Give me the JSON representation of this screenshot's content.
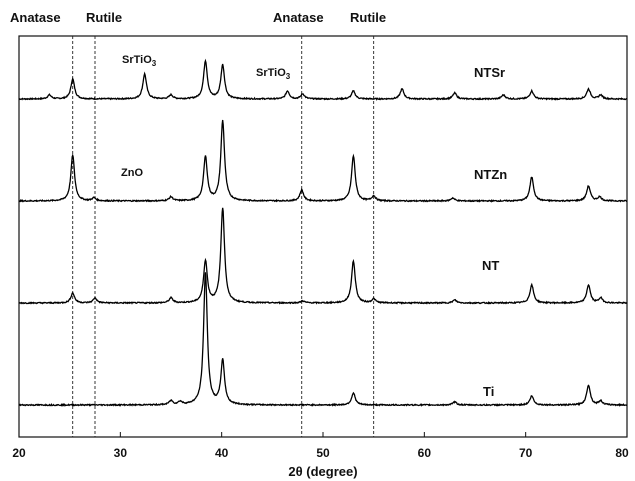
{
  "chart_data": {
    "type": "line",
    "title": "",
    "xlabel": "2θ (degree)",
    "ylabel": "",
    "xlim": [
      20,
      80
    ],
    "xticks": [
      20,
      30,
      40,
      50,
      60,
      70,
      80
    ],
    "grid": false,
    "reference_lines": [
      {
        "x": 25.3,
        "label": "Anatase"
      },
      {
        "x": 27.5,
        "label": "Rutile"
      },
      {
        "x": 47.9,
        "label": "Anatase"
      },
      {
        "x": 55.0,
        "label": "Rutile"
      }
    ],
    "annotations": [
      {
        "text": "SrTiO",
        "sub": "3",
        "x": 32.6,
        "series": "NTSr"
      },
      {
        "text": "SrTiO",
        "sub": "3",
        "x": 46.5,
        "series": "NTSr"
      },
      {
        "text": "ZnO",
        "x": 31.7,
        "series": "NTZn"
      }
    ],
    "series": [
      {
        "name": "NTSr",
        "offset": 3,
        "peaks": [
          [
            23.0,
            0.04
          ],
          [
            25.3,
            0.2
          ],
          [
            32.4,
            0.25
          ],
          [
            35.0,
            0.04
          ],
          [
            38.4,
            0.38
          ],
          [
            40.1,
            0.34
          ],
          [
            46.5,
            0.08
          ],
          [
            48.0,
            0.05
          ],
          [
            53.0,
            0.08
          ],
          [
            57.8,
            0.1
          ],
          [
            63.0,
            0.06
          ],
          [
            67.8,
            0.04
          ],
          [
            70.6,
            0.08
          ],
          [
            76.2,
            0.1
          ],
          [
            77.4,
            0.04
          ]
        ]
      },
      {
        "name": "NTZn",
        "offset": 2,
        "peaks": [
          [
            25.3,
            0.46
          ],
          [
            27.4,
            0.03
          ],
          [
            35.0,
            0.04
          ],
          [
            38.4,
            0.44
          ],
          [
            40.1,
            0.8
          ],
          [
            47.9,
            0.11
          ],
          [
            53.0,
            0.45
          ],
          [
            55.0,
            0.05
          ],
          [
            62.8,
            0.03
          ],
          [
            70.6,
            0.24
          ],
          [
            76.2,
            0.15
          ],
          [
            77.3,
            0.04
          ]
        ]
      },
      {
        "name": "NT",
        "offset": 1,
        "peaks": [
          [
            25.3,
            0.1
          ],
          [
            27.5,
            0.05
          ],
          [
            35.0,
            0.05
          ],
          [
            38.4,
            0.42
          ],
          [
            40.1,
            0.95
          ],
          [
            48.0,
            0.02
          ],
          [
            53.0,
            0.42
          ],
          [
            55.0,
            0.04
          ],
          [
            63.0,
            0.03
          ],
          [
            70.6,
            0.18
          ],
          [
            76.2,
            0.18
          ],
          [
            77.4,
            0.05
          ]
        ]
      },
      {
        "name": "Ti",
        "offset": 0,
        "peaks": [
          [
            35.0,
            0.04
          ],
          [
            35.9,
            0.03
          ],
          [
            38.4,
            1.32
          ],
          [
            40.1,
            0.44
          ],
          [
            53.0,
            0.12
          ],
          [
            63.0,
            0.03
          ],
          [
            70.6,
            0.09
          ],
          [
            76.2,
            0.2
          ],
          [
            77.4,
            0.04
          ]
        ]
      }
    ]
  },
  "labels": {
    "anatase_1": "Anatase",
    "rutile_1": "Rutile",
    "anatase_2": "Anatase",
    "rutile_2": "Rutile",
    "srtio3_a_main": "SrTiO",
    "srtio3_a_sub": "3",
    "srtio3_b_main": "SrTiO",
    "srtio3_b_sub": "3",
    "zno": "ZnO",
    "series_ntsr": "NTSr",
    "series_ntzn": "NTZn",
    "series_nt": "NT",
    "series_ti": "Ti",
    "xlabel": "2θ (degree)"
  }
}
